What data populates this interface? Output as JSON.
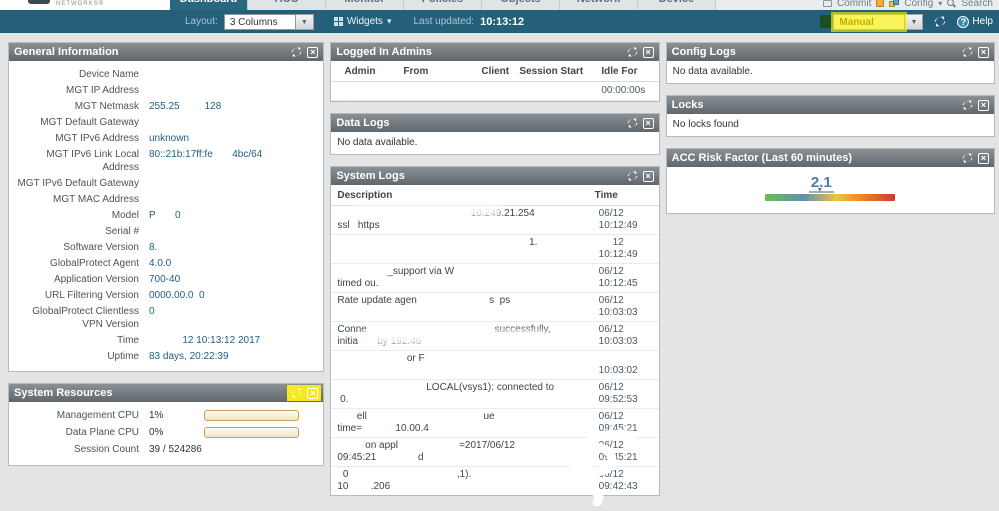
{
  "colors": {
    "teal_bar": "#25607b",
    "active_tab": "#2a6780",
    "panel_title": "#6a7176",
    "value_blue": "#1f5d85",
    "risk_blue": "#4181a8",
    "highlight_yellow": "#f6ee00"
  },
  "logo": {
    "text": "NETWORKS®"
  },
  "tabs": {
    "items": [
      "Dashboard",
      "ACC",
      "Monitor",
      "Policies",
      "Objects",
      "Network",
      "Device"
    ],
    "active": "Dashboard"
  },
  "top_actions": {
    "commit": "Commit",
    "config": "Config",
    "search": "Search"
  },
  "toolbar": {
    "layout_label": "Layout:",
    "layout_value": "3 Columns",
    "widgets_label": "Widgets",
    "last_updated_label": "Last updated:",
    "last_updated_value": "10:13:12",
    "refresh_mode_value": "Manual",
    "help_label": "Help"
  },
  "panels": {
    "general_information": {
      "title": "General Information",
      "rows": [
        {
          "label": "Device Name",
          "value": ""
        },
        {
          "label": "MGT IP Address",
          "value": ""
        },
        {
          "label": "MGT Netmask",
          "value": "255.25         128"
        },
        {
          "label": "MGT Default Gateway",
          "value": ""
        },
        {
          "label": "MGT IPv6 Address",
          "value": "unknown"
        },
        {
          "label": "MGT IPv6 Link Local Address",
          "value": "80::21b:17ff:fe       4bc/64"
        },
        {
          "label": "MGT IPv6 Default Gateway",
          "value": ""
        },
        {
          "label": "MGT MAC Address",
          "value": ""
        },
        {
          "label": "Model",
          "value": "P       0"
        },
        {
          "label": "Serial #",
          "value": ""
        },
        {
          "label": "Software Version",
          "value": "8."
        },
        {
          "label": "GlobalProtect Agent",
          "value": "4.0.0"
        },
        {
          "label": "Application Version",
          "value": "700-40"
        },
        {
          "label": "URL Filtering Version",
          "value": "0000.00.0  0"
        },
        {
          "label": "GlobalProtect Clientless VPN Version",
          "value": "0"
        },
        {
          "label": "Time",
          "value": "            12 10:13:12 2017"
        },
        {
          "label": "Uptime",
          "value": "83 days, 20:22:39"
        }
      ]
    },
    "system_resources": {
      "title": "System Resources",
      "rows": [
        {
          "label": "Management CPU",
          "value": "1%"
        },
        {
          "label": "Data Plane CPU",
          "value": "0%"
        },
        {
          "label": "Session Count",
          "value": "39 / 524286"
        }
      ]
    },
    "logged_in_admins": {
      "title": "Logged In Admins",
      "columns": [
        "Admin",
        "From",
        "Client",
        "Session Start",
        "Idle For"
      ],
      "row": {
        "admin": "",
        "from": "",
        "client": "",
        "session_start": "",
        "idle_for": "00:00:00s"
      }
    },
    "data_logs": {
      "title": "Data Logs",
      "empty": "No data available."
    },
    "system_logs": {
      "title": "System Logs",
      "columns": {
        "description": "Description",
        "time": "Time"
      },
      "rows": [
        {
          "desc": "                                                10.249.21.254\nssl   https",
          "time": "06/12\n10:12:49"
        },
        {
          "desc": "                                                                     1.",
          "time": "     12\n10:12:49"
        },
        {
          "desc": "                  _support via W                              \ntimed ou.",
          "time": "06/12\n10:12:45"
        },
        {
          "desc": "Rate update agen                          s  ps",
          "time": "06/12\n10:03:03"
        },
        {
          "desc": "Conne                                              successfully,\ninitia       by 192.46",
          "time": "06/12\n10:03:03"
        },
        {
          "desc": "                         or F",
          "time": "       \n10:03:02"
        },
        {
          "desc": "                                LOCAL(vsys1): connected to\n 0.",
          "time": "06/12\n09:52:53"
        },
        {
          "desc": "       ell                                          ue\ntime=            10.00.4",
          "time": "06/12\n09:45:21"
        },
        {
          "desc": "          on appl                      =2017/06/12\n09:45:21               d",
          "time": "06/12\n09:45:21"
        },
        {
          "desc": "  0                                       ,1).\n10        .206",
          "time": "06/12\n09:42:43"
        }
      ]
    },
    "config_logs": {
      "title": "Config Logs",
      "empty": "No data available."
    },
    "locks": {
      "title": "Locks",
      "empty": "No locks found"
    },
    "acc_risk": {
      "title": "ACC Risk Factor (Last 60 minutes)",
      "value": "2.1",
      "marker_pct": 42
    }
  }
}
